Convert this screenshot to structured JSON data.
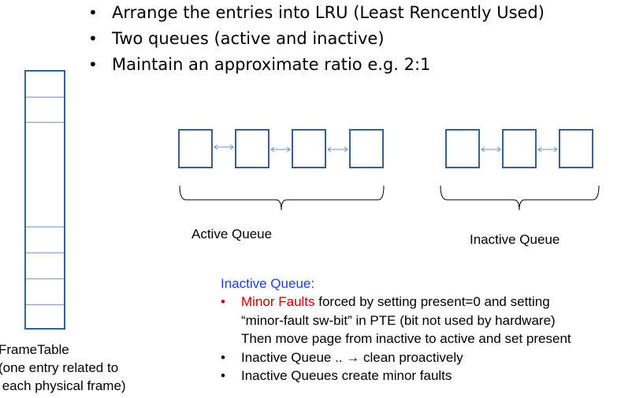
{
  "bullets": [
    "Arrange the entries into LRU (Least Rencently Used)",
    "Two queues (active and inactive)",
    "Maintain an approximate ratio e.g. 2:1"
  ],
  "bullet_symbol": "•",
  "frametable": {
    "label_line1": "FrameTable",
    "label_line2": "(one entry related to",
    "label_line3": " each physical frame)"
  },
  "queues": {
    "active_label": "Active Queue",
    "inactive_label": "Inactive Queue"
  },
  "info": {
    "title": "Inactive Queue:",
    "item1_red": "Minor Faults",
    "item1_rest": " forced by setting present=0 and setting",
    "item1_line2": "“minor-fault sw-bit” in PTE (bit not used by hardware)",
    "item1_line3": "Then move page from inactive to active and set present",
    "item2_prefix": "Inactive Queue .. ",
    "item2_arrow": "→",
    "item2_suffix": " clean proactively",
    "item3": "Inactive Queues create minor faults"
  },
  "colors": {
    "box_border": "#3b5f8a",
    "arrow": "#6b8fc7",
    "title_blue": "#1f3fd6",
    "red": "#c00000"
  }
}
